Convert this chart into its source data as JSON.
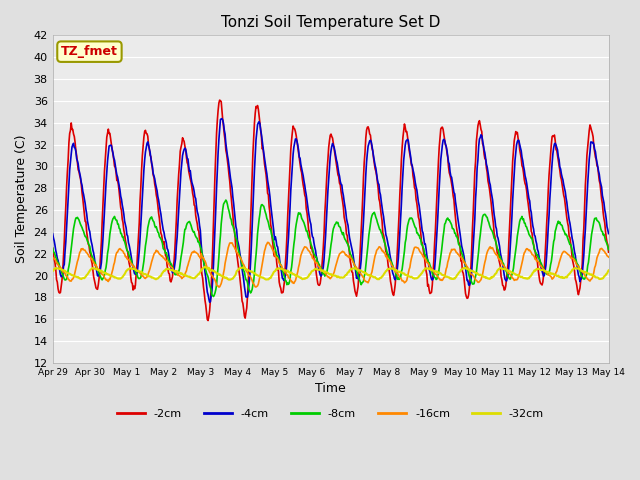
{
  "title": "Tonzi Soil Temperature Set D",
  "xlabel": "Time",
  "ylabel": "Soil Temperature (C)",
  "ylim": [
    12,
    42
  ],
  "yticks": [
    12,
    14,
    16,
    18,
    20,
    22,
    24,
    26,
    28,
    30,
    32,
    34,
    36,
    38,
    40,
    42
  ],
  "annotation_text": "TZ_fmet",
  "annotation_color": "#cc0000",
  "annotation_bg": "#ffffcc",
  "annotation_border": "#999900",
  "series": {
    "-2cm": {
      "color": "#dd0000",
      "lw": 1.2
    },
    "-4cm": {
      "color": "#0000cc",
      "lw": 1.2
    },
    "-8cm": {
      "color": "#00cc00",
      "lw": 1.2
    },
    "-16cm": {
      "color": "#ff8800",
      "lw": 1.2
    },
    "-32cm": {
      "color": "#dddd00",
      "lw": 1.5
    }
  },
  "bg_color": "#e0e0e0",
  "plot_bg": "#ebebeb",
  "grid_color": "#ffffff",
  "x_tick_labels": [
    "Apr 29",
    "Apr 30",
    "May 1",
    "May 2",
    "May 3",
    "May 4",
    "May 5",
    "May 6",
    "May 7",
    "May 8",
    "May 9",
    "May 10",
    "May 11",
    "May 12",
    "May 13",
    "May 14"
  ]
}
